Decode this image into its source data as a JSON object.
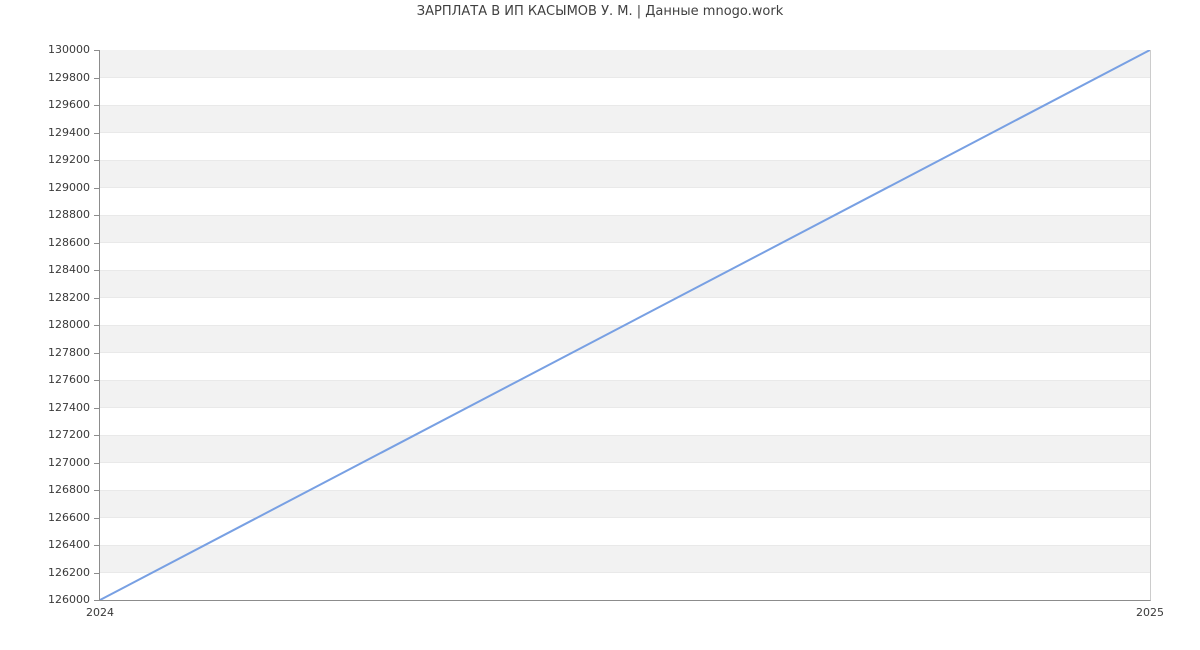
{
  "title": "ЗАРПЛАТА В ИП КАСЫМОВ У. М. | Данные mnogo.work",
  "chart_data": {
    "type": "line",
    "title": "ЗАРПЛАТА В ИП КАСЫМОВ У. М. | Данные mnogo.work",
    "x": [
      2024,
      2025
    ],
    "xtick_labels": [
      "2024",
      "2025"
    ],
    "series": [
      {
        "name": "salary",
        "values": [
          126000,
          130000
        ]
      }
    ],
    "xlabel": "",
    "ylabel": "",
    "ylim": [
      126000,
      130000
    ],
    "ytick_step": 200,
    "grid": "striped-horizontal-bands",
    "legend": "none",
    "colors": {
      "line": "#78a0e3",
      "band": "#f2f2f2",
      "gridline": "#e9e9e9",
      "axis": "#8c8c8c",
      "tick_label": "#3a3a3a",
      "title": "#404040",
      "plot_right_border": "#cccccc"
    }
  }
}
